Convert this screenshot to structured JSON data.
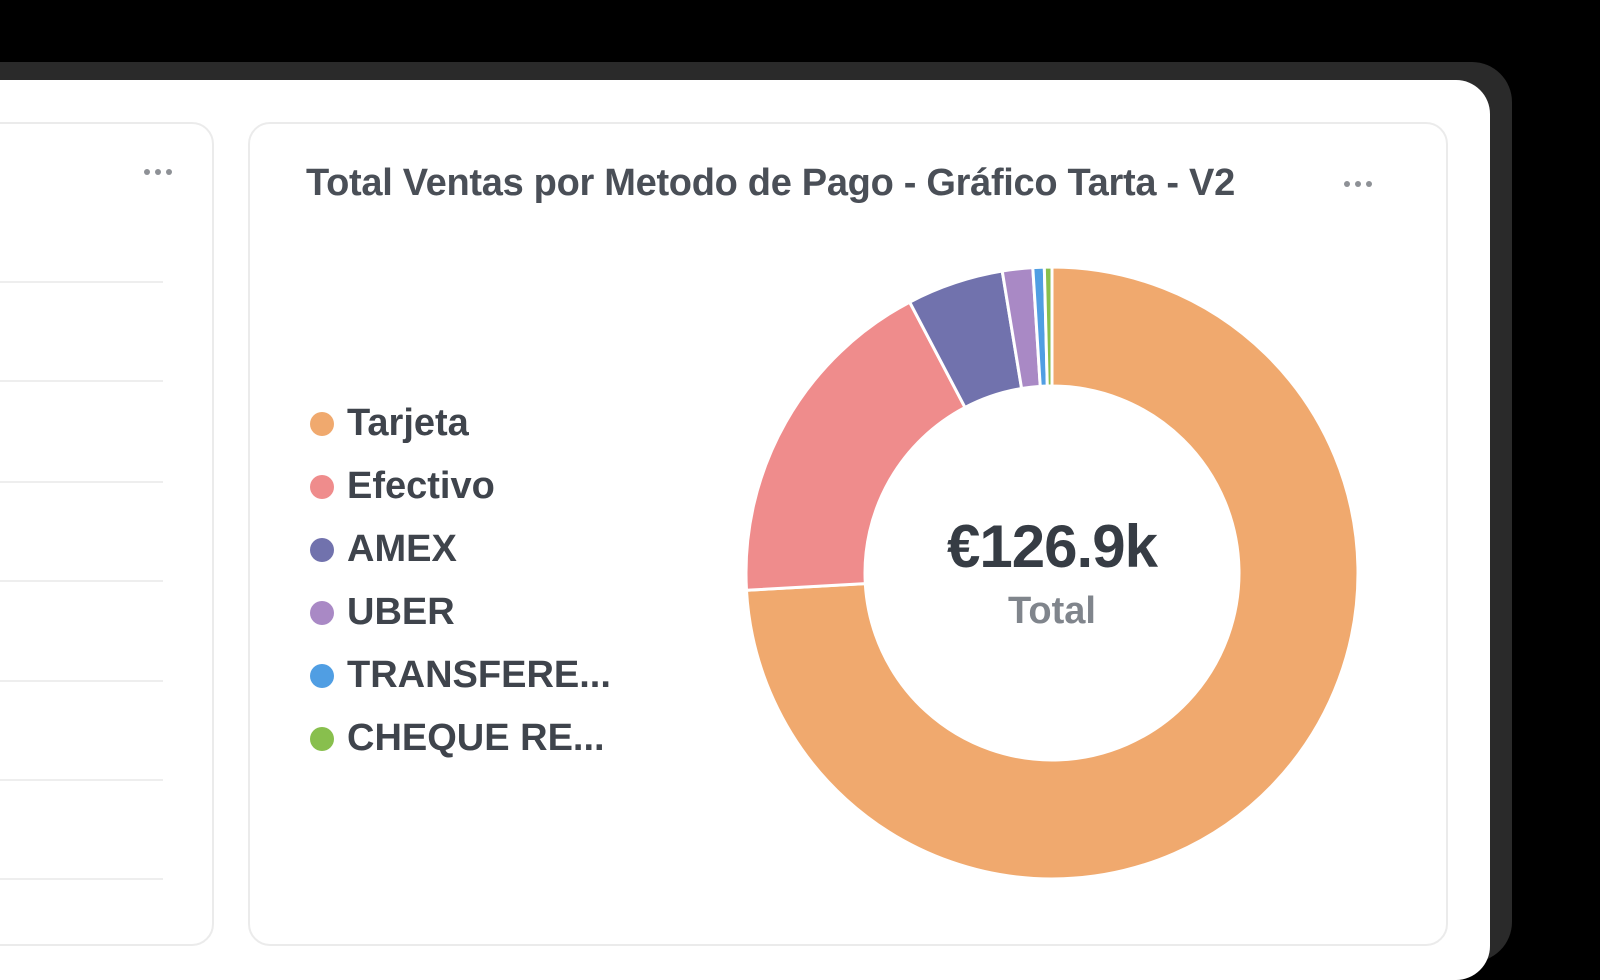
{
  "card": {
    "title": "Total Ventas por Metodo de Pago - Gráfico Tarta - V2",
    "menu_icon": "ellipsis-icon"
  },
  "left_card": {
    "menu_icon": "ellipsis-icon"
  },
  "donut_center": {
    "value": "€126.9k",
    "label": "Total"
  },
  "legend": [
    {
      "label": "Tarjeta",
      "color": "#F0A96E"
    },
    {
      "label": "Efectivo",
      "color": "#EF8C8C"
    },
    {
      "label": "AMEX",
      "color": "#7172AD"
    },
    {
      "label": "UBER",
      "color": "#A989C5"
    },
    {
      "label": "TRANSFERE...",
      "color": "#509EE3"
    },
    {
      "label": "CHEQUE RE...",
      "color": "#88BF4D"
    }
  ],
  "chart_data": {
    "type": "pie",
    "variant": "donut",
    "title": "Total Ventas por Metodo de Pago - Gráfico Tarta - V2",
    "total_label": "Total",
    "total_value": "€126.9k",
    "total": 126900,
    "categories": [
      "Tarjeta",
      "Efectivo",
      "AMEX",
      "UBER",
      "TRANSFERENCIA",
      "CHEQUE RE..."
    ],
    "legend_labels": [
      "Tarjeta",
      "Efectivo",
      "AMEX",
      "UBER",
      "TRANSFERE...",
      "CHEQUE RE..."
    ],
    "percentages": [
      74.1,
      18.2,
      5.1,
      1.6,
      0.6,
      0.4
    ],
    "values": [
      94033,
      23096,
      6472,
      2030,
      761,
      508
    ],
    "colors": [
      "#F0A96E",
      "#EF8C8C",
      "#7172AD",
      "#A989C5",
      "#509EE3",
      "#88BF4D"
    ],
    "legend_position": "left",
    "start_angle_deg": 0,
    "direction": "clockwise"
  }
}
